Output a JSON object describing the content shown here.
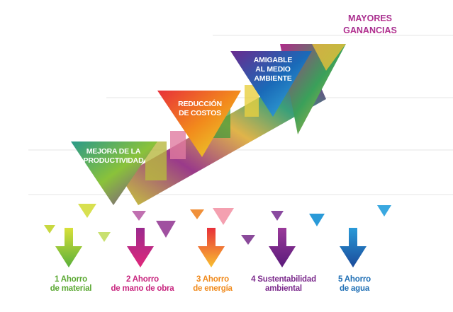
{
  "header": {
    "title_lines": [
      "MAYORES",
      "GANANCIAS"
    ]
  },
  "steps": [
    {
      "lines": [
        "MEJORA DE LA",
        "PRODUCTIVIDAD"
      ]
    },
    {
      "lines": [
        "REDUCCIÓN",
        "DE COSTOS"
      ]
    },
    {
      "lines": [
        "AMIGABLE",
        "AL MEDIO",
        "AMBIENTE"
      ]
    }
  ],
  "savings": [
    {
      "lines": [
        "1 Ahorro",
        "de material"
      ]
    },
    {
      "lines": [
        "2 Ahorro",
        "de mano de obra"
      ]
    },
    {
      "lines": [
        "3 Ahorro",
        "de energía"
      ]
    },
    {
      "lines": [
        "4 Sustentabilidad",
        "ambiental"
      ]
    },
    {
      "lines": [
        "5 Ahorro",
        "de agua"
      ]
    }
  ]
}
